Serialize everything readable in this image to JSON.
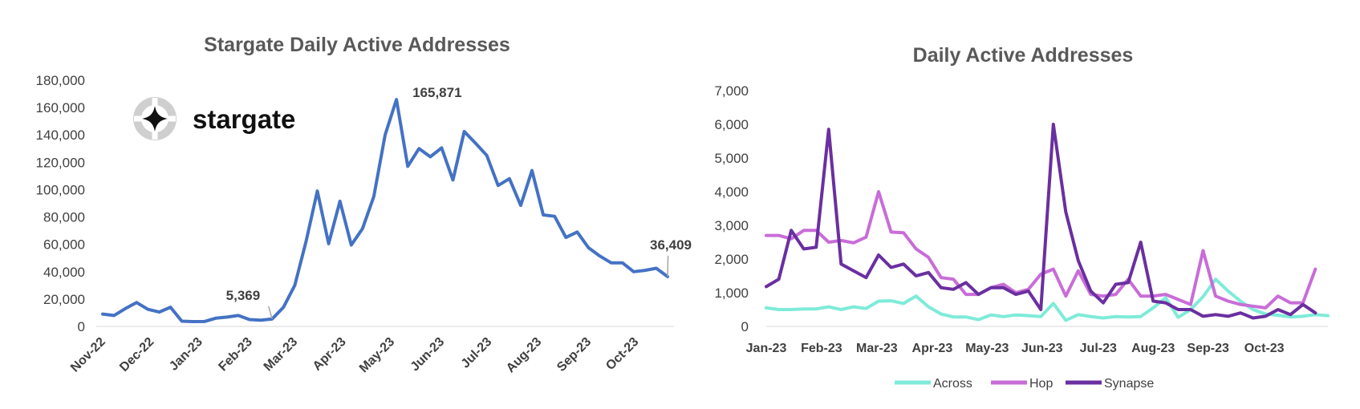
{
  "chart_data": [
    {
      "type": "line",
      "title": "Stargate Daily Active Addresses",
      "xlabel": "",
      "ylabel": "",
      "ylim": [
        0,
        180000
      ],
      "ytick_labels": [
        "0",
        "20,000",
        "40,000",
        "60,000",
        "80,000",
        "100,000",
        "120,000",
        "140,000",
        "160,000",
        "180,000"
      ],
      "ytick_values": [
        0,
        20000,
        40000,
        60000,
        80000,
        100000,
        120000,
        140000,
        160000,
        180000
      ],
      "x_labels": [
        "Nov-22",
        "Dec-22",
        "Jan-23",
        "Feb-23",
        "Mar-23",
        "Apr-23",
        "May-23",
        "Jun-23",
        "Jul-23",
        "Aug-23",
        "Sep-23",
        "Oct-23"
      ],
      "x_label_positions": [
        0,
        4.3,
        8.6,
        13,
        17,
        21.3,
        25.6,
        30,
        34.2,
        38.6,
        43,
        47.2
      ],
      "grid": false,
      "color": "#4472C4",
      "series": [
        {
          "values": [
            9000,
            8000,
            13000,
            17500,
            12500,
            10500,
            14000,
            3800,
            3500,
            3600,
            6000,
            6800,
            8000,
            5000,
            4500,
            5369,
            14000,
            30000,
            62000,
            99000,
            60500,
            91500,
            59500,
            71500,
            95000,
            140000,
            165871,
            117000,
            130000,
            124000,
            130500,
            107000,
            142500,
            134000,
            125000,
            103000,
            108000,
            88500,
            114000,
            81500,
            80500,
            65000,
            69000,
            57500,
            51500,
            46500,
            46500,
            40000,
            41000,
            42500,
            36409
          ]
        }
      ],
      "annotations": [
        {
          "text": "5,369",
          "index": 15
        },
        {
          "text": "165,871",
          "index": 26
        },
        {
          "text": "36,409",
          "index": 50
        }
      ],
      "logo": {
        "text": "stargate",
        "icon": "stargate-logo-icon"
      }
    },
    {
      "type": "line",
      "title": "Daily Active Addresses",
      "xlabel": "",
      "ylabel": "",
      "ylim": [
        0,
        7000
      ],
      "ytick_labels": [
        "0",
        "1,000",
        "2,000",
        "3,000",
        "4,000",
        "5,000",
        "6,000",
        "7,000"
      ],
      "ytick_values": [
        0,
        1000,
        2000,
        3000,
        4000,
        5000,
        6000,
        7000
      ],
      "x_labels": [
        "Jan-23",
        "Feb-23",
        "Mar-23",
        "Apr-23",
        "May-23",
        "Jun-23",
        "Jul-23",
        "Aug-23",
        "Sep-23",
        "Oct-23"
      ],
      "x_label_positions": [
        0,
        4.43,
        8.86,
        13.3,
        17.7,
        22.1,
        26.6,
        31,
        35.4,
        39.9
      ],
      "grid": false,
      "legend_position": "bottom",
      "series": [
        {
          "name": "Across",
          "color": "#7EEBD9",
          "values": [
            550,
            500,
            500,
            520,
            520,
            580,
            500,
            580,
            530,
            750,
            760,
            680,
            900,
            580,
            370,
            280,
            280,
            200,
            340,
            290,
            340,
            320,
            290,
            680,
            180,
            350,
            290,
            250,
            290,
            280,
            290,
            550,
            850,
            270,
            500,
            880,
            1400,
            1050,
            750,
            500,
            370,
            330,
            280,
            300,
            350,
            320
          ]
        },
        {
          "name": "Hop",
          "color": "#C86DD7",
          "values": [
            2700,
            2700,
            2600,
            2850,
            2850,
            2500,
            2550,
            2480,
            2650,
            4000,
            2800,
            2780,
            2300,
            2050,
            1450,
            1400,
            950,
            950,
            1150,
            1250,
            1000,
            1100,
            1550,
            1700,
            900,
            1650,
            950,
            900,
            950,
            1400,
            900,
            900,
            950,
            800,
            650,
            2250,
            900,
            750,
            650,
            600,
            550,
            900,
            700,
            700,
            1700
          ]
        },
        {
          "name": "Synapse",
          "color": "#6A2FA0",
          "values": [
            1180,
            1400,
            2850,
            2300,
            2350,
            5850,
            1850,
            1650,
            1450,
            2120,
            1750,
            1850,
            1500,
            1600,
            1150,
            1100,
            1300,
            950,
            1150,
            1150,
            950,
            1050,
            500,
            6000,
            3400,
            1950,
            1050,
            700,
            1250,
            1300,
            2500,
            750,
            700,
            500,
            500,
            300,
            350,
            300,
            400,
            250,
            300,
            500,
            350,
            650,
            400
          ]
        }
      ]
    }
  ]
}
